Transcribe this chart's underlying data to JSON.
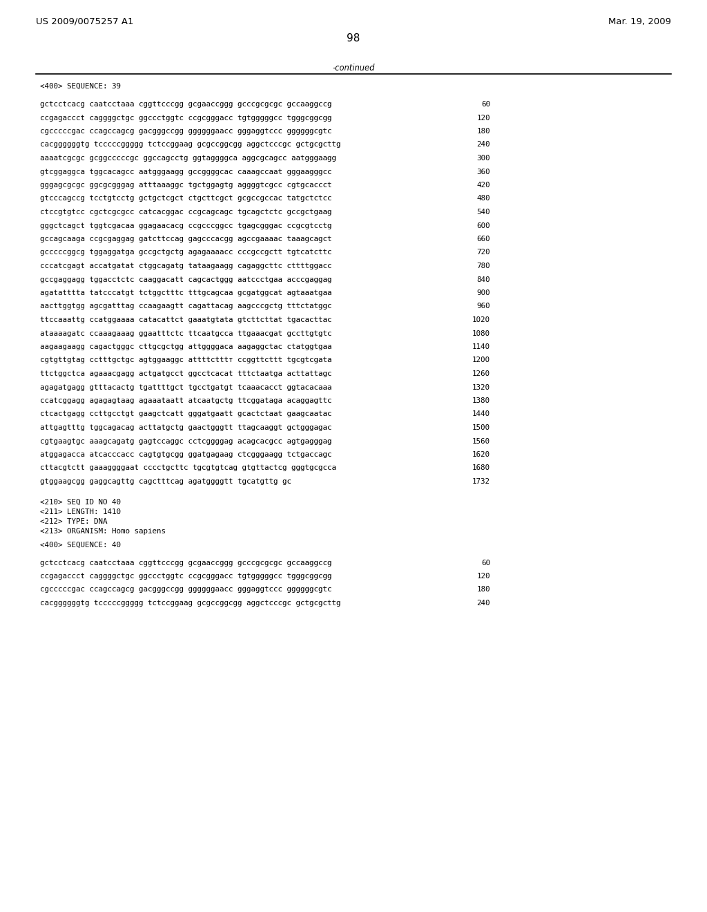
{
  "header_left": "US 2009/0075257 A1",
  "header_right": "Mar. 19, 2009",
  "page_number": "98",
  "continued_text": "-continued",
  "bg_color": "#ffffff",
  "text_color": "#000000",
  "font_size_header": 9.5,
  "font_size_body": 7.8,
  "font_size_page": 11,
  "sequence_label": "<400> SEQUENCE: 39",
  "seq2_header_lines": [
    "<210> SEQ ID NO 40",
    "<211> LENGTH: 1410",
    "<212> TYPE: DNA",
    "<213> ORGANISM: Homo sapiens"
  ],
  "seq2_label": "<400> SEQUENCE: 40",
  "sequence_lines": [
    [
      "gctcctcacg caatcctaaa cggttcccgg gcgaaccggg gcccgcgcgc gccaaggccg",
      "60"
    ],
    [
      "ccgagaccct caggggctgc ggccctggtc ccgcgggacc tgtgggggcc tgggcggcgg",
      "120"
    ],
    [
      "cgcccccgac ccagccagcg gacgggccgg ggggggaacc gggaggtccc ggggggcgtc",
      "180"
    ],
    [
      "cacggggggtg tcccccggggg tctccggaag gcgccggcgg aggctcccgc gctgcgcttg",
      "240"
    ],
    [
      "aaaatcgcgc gcggcccccgc ggccagcctg ggtaggggca aggcgcagcc aatgggaagg",
      "300"
    ],
    [
      "gtcggaggca tggcacagcc aatgggaagg gccggggcac caaagccaat gggaagggcc",
      "360"
    ],
    [
      "gggagcgcgc ggcgcgggag atttaaaggc tgctggagtg aggggtcgcc cgtgcaccct",
      "420"
    ],
    [
      "gtcccagccg tcctgtcctg gctgctcgct ctgcttcgct gcgccgccac tatgctctcc",
      "480"
    ],
    [
      "ctccgtgtcc cgctcgcgcc catcacggac ccgcagcagc tgcagctctc gccgctgaag",
      "540"
    ],
    [
      "gggctcagct tggtcgacaa ggagaacacg ccgcccggcc tgagcgggac ccgcgtcctg",
      "600"
    ],
    [
      "gccagcaaga ccgcgaggag gatcttccag gagcccacgg agccgaaaac taaagcagct",
      "660"
    ],
    [
      "gcccccggcg tggaggatga gccgctgctg agagaaaacc cccgccgctt tgtcatcttc",
      "720"
    ],
    [
      "cccatcgagt accatgatat ctggcagatg tataagaagg cagaggcttc cttttggacc",
      "780"
    ],
    [
      "gccgaggagg tggacctctc caaggacatt cagcactggg aatccctgaa acccgaggag",
      "840"
    ],
    [
      "agatatttta tatcccatgt tctggctttc tttgcagcaa gcgatggcat agtaaatgaa",
      "900"
    ],
    [
      "aacttggtgg agcgatttag ccaagaagtt cagattacag aagcccgctg tttctatggc",
      "960"
    ],
    [
      "ttccaaattg ccatggaaaa catacattct gaaatgtata gtcttcttat tgacacttac",
      "1020"
    ],
    [
      "ataaaagatc ccaaagaaag ggaatttctc ttcaatgcca ttgaaacgat gccttgtgtc",
      "1080"
    ],
    [
      "aagaagaagg cagactgggc cttgcgctgg attggggaca aagaggctac ctatggtgaa",
      "1140"
    ],
    [
      "cgtgttgtag cctttgctgc agtggaaggc attttctttт ccggttcttt tgcgtcgata",
      "1200"
    ],
    [
      "ttctggctca agaaacgagg actgatgcct ggcctcacat tttctaatga acttattagc",
      "1260"
    ],
    [
      "agagatgagg gtttacactg tgattttgct tgcctgatgt tcaaacacct ggtacacaaa",
      "1320"
    ],
    [
      "ccatcggagg agagagtaag agaaataatt atcaatgctg ttcggataga acaggagttc",
      "1380"
    ],
    [
      "ctcactgagg ccttgcctgt gaagctcatt gggatgaatt gcactctaat gaagcaatac",
      "1440"
    ],
    [
      "attgagtttg tggcagacag acttatgctg gaactgggtt ttagcaaggt gctgggagac",
      "1500"
    ],
    [
      "cgtgaagtgc aaagcagatg gagtccaggc cctcggggag acagcacgcc agtgagggag",
      "1560"
    ],
    [
      "atggagacca atcacccacc cagtgtgcgg ggatgagaag ctcgggaagg tctgaccagc",
      "1620"
    ],
    [
      "cttacgtctt gaaaggggaat cccctgcttc tgcgtgtcag gtgttactcg gggtgcgcca",
      "1680"
    ],
    [
      "gtggaagcgg gaggcagttg cagctttcag agatggggtt tgcatgttg gc",
      "1732"
    ]
  ],
  "seq2_sequence_lines": [
    [
      "gctcctcacg caatcctaaa cggttcccgg gcgaaccggg gcccgcgcgc gccaaggccg",
      "60"
    ],
    [
      "ccgagaccct caggggctgc ggccctggtc ccgcgggacc tgtgggggcc tgggcggcgg",
      "120"
    ],
    [
      "cgcccccgac ccagccagcg gacgggccgg ggggggaacc gggaggtccc ggggggcgtc",
      "180"
    ],
    [
      "cacggggggtg tcccccggggg tctccggaag gcgccggcgg aggctcccgc gctgcgcttg",
      "240"
    ]
  ]
}
